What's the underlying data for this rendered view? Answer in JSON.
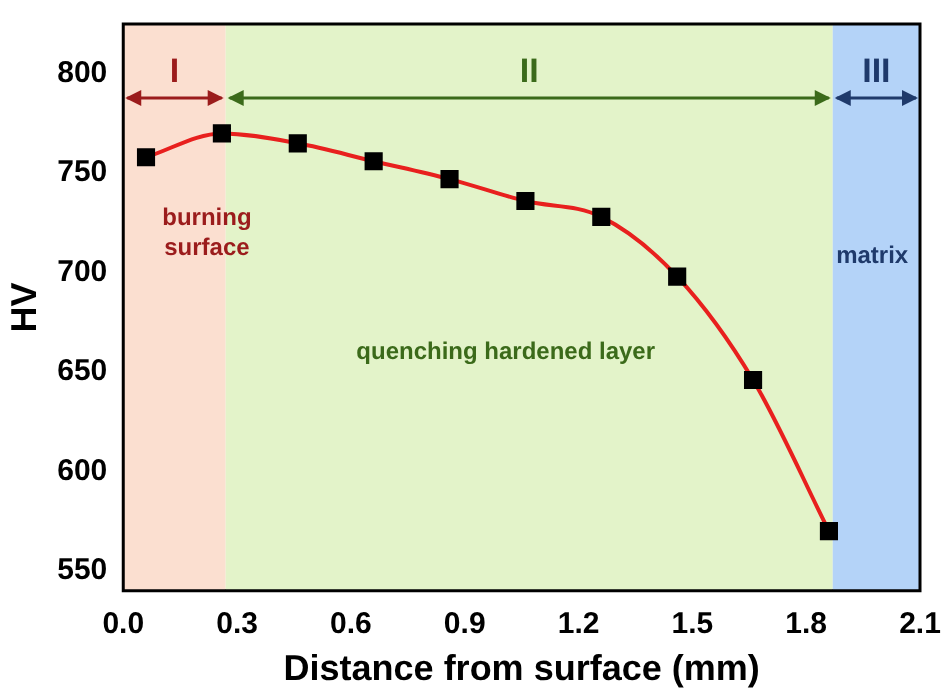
{
  "chart_data": {
    "type": "line",
    "xlabel": "Distance from surface (mm)",
    "ylabel": "HV",
    "x": [
      0.06,
      0.26,
      0.46,
      0.66,
      0.86,
      1.06,
      1.26,
      1.46,
      1.66,
      1.86
    ],
    "series": [
      {
        "color": "#e8201e",
        "values": [
          758,
          770,
          765,
          756,
          747,
          736,
          728,
          698,
          646,
          570
        ]
      }
    ],
    "xlim": [
      0,
      2.1
    ],
    "xticks": [
      {
        "value": 0,
        "label": "0.0"
      },
      0.3,
      0.6,
      0.9,
      1.2,
      1.5,
      1.8,
      2.1
    ],
    "ylim": [
      540,
      825
    ],
    "yticks": [
      550,
      600,
      650,
      700,
      750,
      800
    ],
    "bands": [
      {
        "axis": "x",
        "from": 0,
        "to": 0.27,
        "label": "I",
        "color": "#fbdfd0"
      },
      {
        "axis": "x",
        "from": 0.27,
        "to": 1.87,
        "label": "II",
        "color": "#e3f3c9"
      },
      {
        "axis": "x",
        "from": 1.87,
        "to": 2.1,
        "label": "III",
        "color": "#b4d3f8"
      }
    ],
    "annotations": [
      "burning surface",
      "quenching hardened layer",
      "matrix"
    ],
    "marker": "square",
    "line_style": "solid",
    "grid": false,
    "legend": false
  }
}
